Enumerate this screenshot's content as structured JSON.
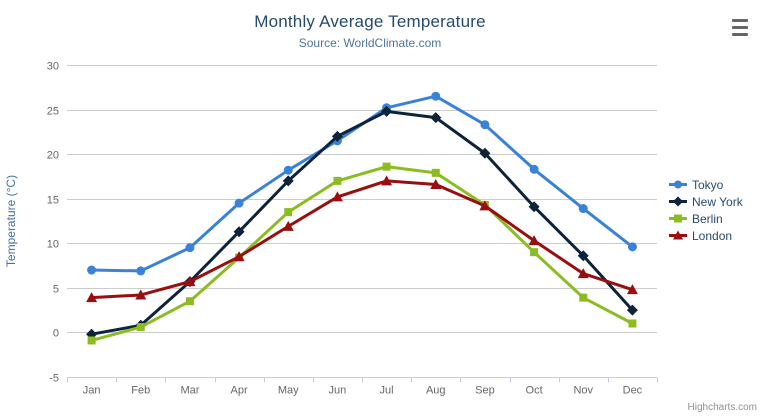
{
  "page": {
    "credits": "Highcharts.com"
  },
  "chart_data": {
    "type": "line",
    "title": "Monthly Average Temperature",
    "subtitle": "Source: WorldClimate.com",
    "categories": [
      "Jan",
      "Feb",
      "Mar",
      "Apr",
      "May",
      "Jun",
      "Jul",
      "Aug",
      "Sep",
      "Oct",
      "Nov",
      "Dec"
    ],
    "xlabel": "",
    "ylabel": "Temperature (°C)",
    "ylim": [
      -5,
      30
    ],
    "y_ticks": [
      -5,
      0,
      5,
      10,
      15,
      20,
      25,
      30
    ],
    "grid": true,
    "legend_position": "right",
    "series": [
      {
        "name": "Tokyo",
        "color": "#3a82d8",
        "marker": "circle",
        "values": [
          7.0,
          6.9,
          9.5,
          14.5,
          18.2,
          21.5,
          25.2,
          26.5,
          23.3,
          18.3,
          13.9,
          9.6
        ]
      },
      {
        "name": "New York",
        "color": "#0d233a",
        "marker": "diamond",
        "values": [
          -0.2,
          0.8,
          5.7,
          11.3,
          17.0,
          22.0,
          24.8,
          24.1,
          20.1,
          14.1,
          8.6,
          2.5
        ]
      },
      {
        "name": "Berlin",
        "color": "#8bbc21",
        "marker": "square",
        "values": [
          -0.9,
          0.6,
          3.5,
          8.4,
          13.5,
          17.0,
          18.6,
          17.9,
          14.3,
          9.0,
          3.9,
          1.0
        ]
      },
      {
        "name": "London",
        "color": "#990f0f",
        "marker": "triangle",
        "values": [
          3.9,
          4.2,
          5.7,
          8.5,
          11.9,
          15.2,
          17.0,
          16.6,
          14.2,
          10.3,
          6.6,
          4.8
        ]
      }
    ],
    "style": {
      "grid_color": "#cccccc",
      "axis_line_color": "#c0d0e0",
      "tick_color": "#c0d0e0",
      "axis_label_color": "#666666",
      "y_title_color": "#4572a7",
      "title_color": "#274b6d",
      "subtitle_color": "#4d759e",
      "legend_text_color": "#274b6d"
    }
  }
}
